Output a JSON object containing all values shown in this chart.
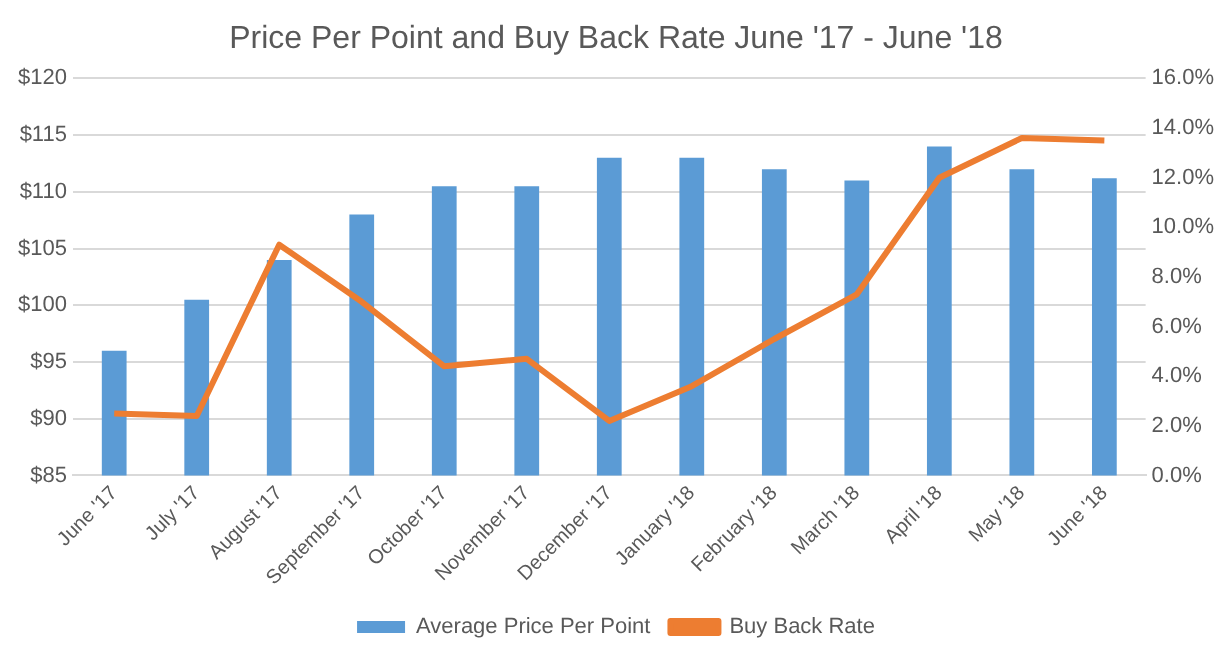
{
  "chart_data": {
    "type": "bar",
    "title": "Price Per Point and Buy Back Rate June '17 - June '18",
    "categories": [
      "June '17",
      "July '17",
      "August '17",
      "September '17",
      "October '17",
      "November '17",
      "December '17",
      "January '18",
      "February '18",
      "March '18",
      "April '18",
      "May '18",
      "June '18"
    ],
    "series": [
      {
        "name": "Average Price Per Point",
        "color": "#5b9bd5",
        "values": [
          96,
          100.5,
          104,
          108,
          110.5,
          110.5,
          113,
          113,
          112,
          111,
          114,
          112,
          111.2
        ]
      },
      {
        "name": "Buy Back Rate",
        "type": "line",
        "axis": "y2",
        "color": "#ed7d31",
        "values": [
          2.5,
          2.4,
          9.3,
          7,
          4.4,
          4.7,
          2.2,
          3.6,
          5.5,
          7.3,
          12,
          13.6,
          13.5
        ]
      }
    ],
    "ylim": [
      85,
      120
    ],
    "yticks": [
      {
        "value": 85,
        "label": "$85"
      },
      {
        "value": 90,
        "label": "$90"
      },
      {
        "value": 95,
        "label": "$95"
      },
      {
        "value": 100,
        "label": "$100"
      },
      {
        "value": 105,
        "label": "$105"
      },
      {
        "value": 110,
        "label": "$110"
      },
      {
        "value": 115,
        "label": "$115"
      },
      {
        "value": 120,
        "label": "$120"
      }
    ],
    "y2lim": [
      0,
      16
    ],
    "y2ticks": [
      {
        "value": 0,
        "label": "0.0%"
      },
      {
        "value": 2,
        "label": "2.0%"
      },
      {
        "value": 4,
        "label": "4.0%"
      },
      {
        "value": 6,
        "label": "6.0%"
      },
      {
        "value": 8,
        "label": "8.0%"
      },
      {
        "value": 10,
        "label": "10.0%"
      },
      {
        "value": 12,
        "label": "12.0%"
      },
      {
        "value": 14,
        "label": "14.0%"
      },
      {
        "value": 16,
        "label": "16.0%"
      }
    ],
    "grid": "y",
    "legend": "bottom",
    "marker": "none"
  }
}
